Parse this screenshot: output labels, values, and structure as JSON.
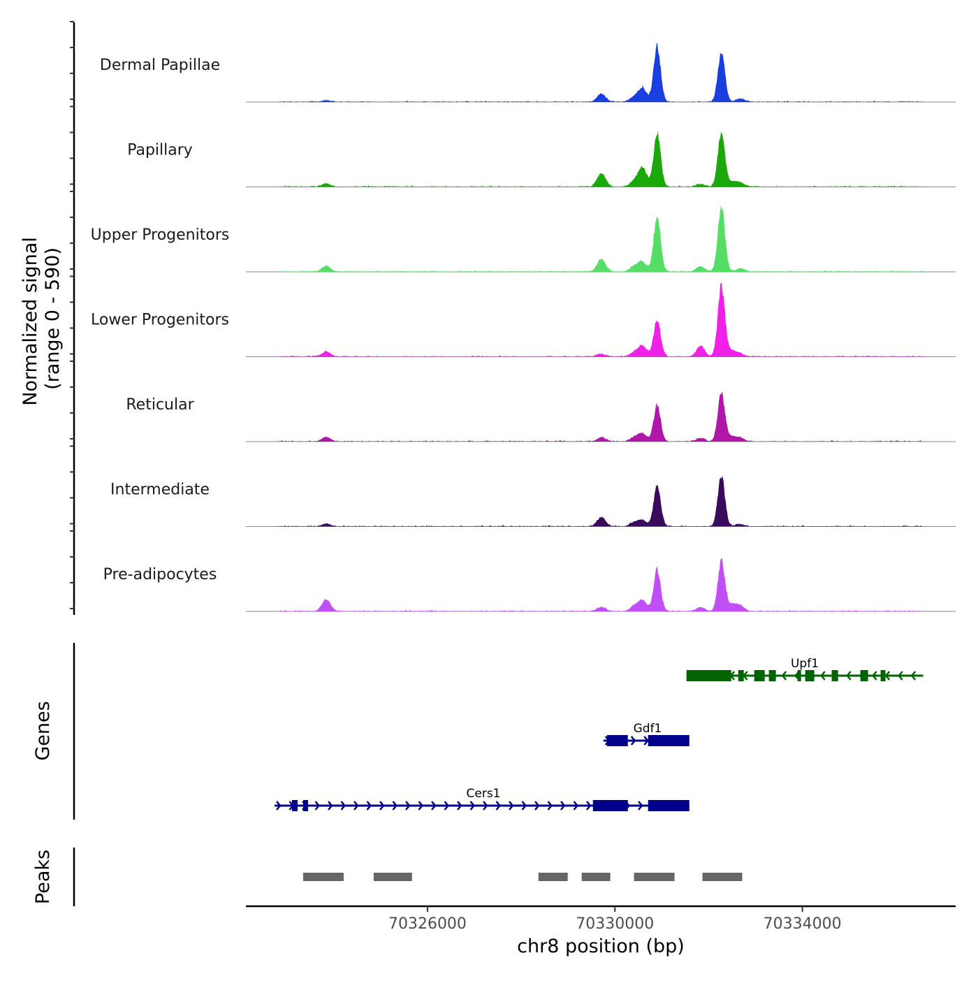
{
  "chart_data": {
    "type": "area",
    "title": "",
    "xlabel": "chr8 position (bp)",
    "ylabel": "Normalized signal",
    "ylabel_sub": "(range 0 - 590)",
    "xlim": [
      70322125,
      70337270
    ],
    "ylim": [
      0,
      590
    ],
    "x_ticks": [
      70326000,
      70330000,
      70334000
    ],
    "x_tick_labels": [
      "70326000",
      "70330000",
      "70334000"
    ],
    "signal_range": [
      70322810,
      70336578
    ],
    "tracks": [
      {
        "name": "Dermal Papillae",
        "color": "#1a3fe0",
        "peaks": [
          [
            70323838,
            12
          ],
          [
            70329709,
            63
          ],
          [
            70330409,
            35
          ],
          [
            70330588,
            102
          ],
          [
            70330901,
            419
          ],
          [
            70332272,
            380
          ],
          [
            70332674,
            25
          ]
        ]
      },
      {
        "name": "Papillary",
        "color": "#1aa80a",
        "peaks": [
          [
            70323838,
            24
          ],
          [
            70329709,
            102
          ],
          [
            70330409,
            40
          ],
          [
            70330588,
            146
          ],
          [
            70330901,
            410
          ],
          [
            70331825,
            20
          ],
          [
            70332272,
            414
          ],
          [
            70332500,
            35
          ],
          [
            70332674,
            30
          ]
        ]
      },
      {
        "name": "Upper Progenitors",
        "color": "#55dd66",
        "peaks": [
          [
            70323838,
            44
          ],
          [
            70329709,
            93
          ],
          [
            70330409,
            40
          ],
          [
            70330588,
            70
          ],
          [
            70330901,
            410
          ],
          [
            70331825,
            40
          ],
          [
            70332272,
            493
          ],
          [
            70332674,
            25
          ]
        ]
      },
      {
        "name": "Lower Progenitors",
        "color": "#f020e8",
        "peaks": [
          [
            70323838,
            38
          ],
          [
            70329709,
            20
          ],
          [
            70330409,
            30
          ],
          [
            70330588,
            78
          ],
          [
            70330901,
            273
          ],
          [
            70331825,
            78
          ],
          [
            70332272,
            531
          ],
          [
            70332500,
            45
          ],
          [
            70332674,
            20
          ]
        ]
      },
      {
        "name": "Reticular",
        "color": "#b016a8",
        "peaks": [
          [
            70323838,
            34
          ],
          [
            70329709,
            30
          ],
          [
            70330409,
            30
          ],
          [
            70330588,
            60
          ],
          [
            70330901,
            273
          ],
          [
            70331825,
            25
          ],
          [
            70332272,
            361
          ],
          [
            70332500,
            35
          ],
          [
            70332674,
            25
          ]
        ]
      },
      {
        "name": "Intermediate",
        "color": "#3a0a5c",
        "peaks": [
          [
            70323838,
            20
          ],
          [
            70329709,
            68
          ],
          [
            70330409,
            30
          ],
          [
            70330588,
            45
          ],
          [
            70330901,
            307
          ],
          [
            70332272,
            385
          ],
          [
            70332674,
            15
          ]
        ]
      },
      {
        "name": "Pre-adipocytes",
        "color": "#c050f5",
        "peaks": [
          [
            70323838,
            88
          ],
          [
            70329709,
            30
          ],
          [
            70330409,
            35
          ],
          [
            70330588,
            83
          ],
          [
            70330901,
            312
          ],
          [
            70331825,
            30
          ],
          [
            70332272,
            380
          ],
          [
            70332500,
            50
          ],
          [
            70332674,
            40
          ]
        ]
      }
    ],
    "genes": [
      {
        "name": "Upf1",
        "strand": "-",
        "color": "#006400",
        "start": 70331527,
        "end": 70336578,
        "exons": [
          [
            70331527,
            70332481
          ],
          [
            70332630,
            70332749
          ],
          [
            70332972,
            70333196
          ],
          [
            70333285,
            70333434
          ],
          [
            70333896,
            70333971
          ],
          [
            70334060,
            70334254
          ],
          [
            70334626,
            70334760
          ],
          [
            70335237,
            70335401
          ],
          [
            70335669,
            70335773
          ]
        ]
      },
      {
        "name": "Gdf1",
        "strand": "+",
        "color": "#00008b",
        "start": 70329754,
        "end": 70331587,
        "exons": [
          [
            70329828,
            70330275
          ],
          [
            70330707,
            70331587
          ]
        ]
      },
      {
        "name": "Cers1",
        "strand": "+",
        "color": "#00008b",
        "start": 70322736,
        "end": 70331587,
        "exons": [
          [
            70323108,
            70323228
          ],
          [
            70323347,
            70323451
          ],
          [
            70329530,
            70330275
          ],
          [
            70330707,
            70331587
          ]
        ]
      }
    ],
    "genes_label": "Genes",
    "peaks_label": "Peaks",
    "peaks_color": "#666666",
    "peak_regions": [
      [
        70323346,
        70324211
      ],
      [
        70324851,
        70325670
      ],
      [
        70328367,
        70328992
      ],
      [
        70329290,
        70329901
      ],
      [
        70330407,
        70331271
      ],
      [
        70331867,
        70332716
      ]
    ]
  }
}
